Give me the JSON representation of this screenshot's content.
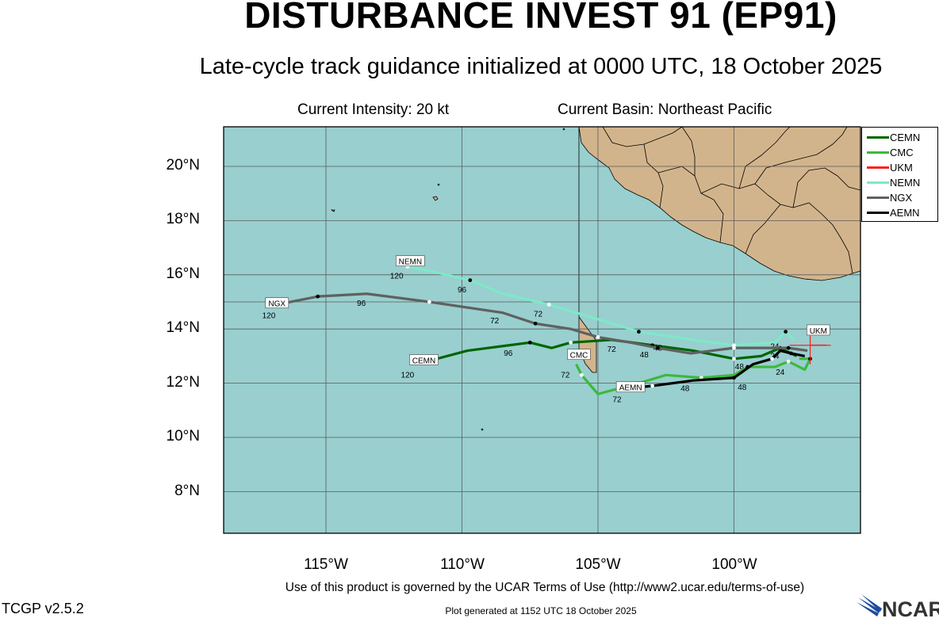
{
  "header": {
    "title": "DISTURBANCE INVEST 91 (EP91)",
    "subtitle": "Late-cycle track guidance initialized at 0000 UTC, 18 October 2025",
    "intensity": "Current Intensity: 20 kt",
    "basin": "Current Basin: Northeast Pacific"
  },
  "axes": {
    "lat_labels": [
      "20°N",
      "18°N",
      "16°N",
      "14°N",
      "12°N",
      "10°N",
      "8°N"
    ],
    "lon_labels": [
      "115°W",
      "110°W",
      "105°W",
      "100°W"
    ]
  },
  "colors": {
    "ocean": "#99cfcf",
    "land": "#d2b48c",
    "CEMN": "#006400",
    "CMC": "#3cb93c",
    "UKM": "#ff2020",
    "NEMN": "#7fe8c8",
    "NGX": "#606060",
    "AEMN": "#000000"
  },
  "legend": [
    "CEMN",
    "CMC",
    "UKM",
    "NEMN",
    "NGX",
    "AEMN"
  ],
  "map_data": {
    "type": "track",
    "current_position": {
      "lat": 13.4,
      "lon": -97.2
    },
    "tracks": [
      {
        "name": "CEMN",
        "points": [
          [
            -97.7,
            13.0
          ],
          [
            -98.3,
            13.3
          ],
          [
            -99.0,
            13.0
          ],
          [
            -100.0,
            12.9
          ],
          [
            -101.5,
            13.2
          ],
          [
            -103.0,
            13.4
          ],
          [
            -104.5,
            13.6
          ],
          [
            -106.0,
            13.5
          ],
          [
            -106.7,
            13.3
          ],
          [
            -107.5,
            13.5
          ],
          [
            -109.8,
            13.2
          ],
          [
            -111.3,
            12.8
          ]
        ],
        "labels": [
          {
            "text": "48",
            "lon": -99.8,
            "lat": 12.8
          },
          {
            "text": "72",
            "lon": -104.5,
            "lat": 13.45
          },
          {
            "text": "96",
            "lon": -108.3,
            "lat": 13.3
          },
          {
            "text": "120",
            "lon": -112.0,
            "lat": 12.5
          }
        ],
        "tag": {
          "text": "CEMN",
          "lon": -111.4,
          "lat": 12.85
        }
      },
      {
        "name": "CMC",
        "points": [
          [
            -97.6,
            12.9
          ],
          [
            -97.2,
            12.9
          ],
          [
            -97.4,
            12.5
          ],
          [
            -98.0,
            12.8
          ],
          [
            -98.5,
            12.6
          ],
          [
            -99.5,
            12.6
          ],
          [
            -100.0,
            12.3
          ],
          [
            -101.2,
            12.2
          ],
          [
            -102.5,
            12.3
          ],
          [
            -103.5,
            12.0
          ],
          [
            -105.0,
            11.6
          ],
          [
            -105.6,
            12.3
          ],
          [
            -105.8,
            12.7
          ]
        ],
        "labels": [
          {
            "text": "24",
            "lon": -98.3,
            "lat": 12.6
          },
          {
            "text": "48",
            "lon": -101.8,
            "lat": 12.0
          },
          {
            "text": "72",
            "lon": -106.2,
            "lat": 12.5
          }
        ],
        "tag": {
          "text": "CMC",
          "lon": -105.7,
          "lat": 13.05
        }
      },
      {
        "name": "UKM",
        "points": [
          [
            -96.6,
            13.4
          ],
          [
            -97.2,
            13.4
          ]
        ],
        "labels": [],
        "tag": {
          "text": "UKM",
          "lon": -96.9,
          "lat": 13.95
        }
      },
      {
        "name": "NEMN",
        "points": [
          [
            -97.8,
            13.6
          ],
          [
            -98.1,
            13.9
          ],
          [
            -98.5,
            13.5
          ],
          [
            -100.0,
            13.4
          ],
          [
            -101.5,
            13.6
          ],
          [
            -103.5,
            13.9
          ],
          [
            -104.8,
            14.3
          ],
          [
            -106.8,
            14.9
          ],
          [
            -108.5,
            15.3
          ],
          [
            -109.7,
            15.8
          ],
          [
            -111.0,
            16.1
          ],
          [
            -112.0,
            16.3
          ]
        ],
        "labels": [
          {
            "text": "24",
            "lon": -98.5,
            "lat": 13.55
          },
          {
            "text": "48",
            "lon": -102.8,
            "lat": 13.5
          },
          {
            "text": "72",
            "lon": -107.2,
            "lat": 14.75
          },
          {
            "text": "96",
            "lon": -110.0,
            "lat": 15.65
          },
          {
            "text": "120",
            "lon": -112.4,
            "lat": 16.15
          }
        ],
        "tag": {
          "text": "NEMN",
          "lon": -111.9,
          "lat": 16.5
        }
      },
      {
        "name": "NGX",
        "points": [
          [
            -97.3,
            13.2
          ],
          [
            -98.0,
            13.3
          ],
          [
            -99.0,
            13.3
          ],
          [
            -100.0,
            13.3
          ],
          [
            -101.6,
            13.1
          ],
          [
            -102.8,
            13.3
          ],
          [
            -103.8,
            13.5
          ],
          [
            -105.0,
            13.7
          ],
          [
            -106.0,
            14.0
          ],
          [
            -107.3,
            14.2
          ],
          [
            -108.5,
            14.6
          ],
          [
            -111.2,
            15.0
          ],
          [
            -113.5,
            15.3
          ],
          [
            -115.3,
            15.2
          ],
          [
            -116.8,
            14.9
          ]
        ],
        "labels": [
          {
            "text": "24",
            "lon": -98.5,
            "lat": 13.2
          },
          {
            "text": "48",
            "lon": -103.3,
            "lat": 13.25
          },
          {
            "text": "72",
            "lon": -108.8,
            "lat": 14.5
          },
          {
            "text": "96",
            "lon": -113.7,
            "lat": 15.15
          },
          {
            "text": "120",
            "lon": -117.1,
            "lat": 14.7
          }
        ],
        "tag": {
          "text": "NGX",
          "lon": -116.8,
          "lat": 14.95
        }
      },
      {
        "name": "AEMN",
        "points": [
          [
            -97.4,
            13.0
          ],
          [
            -97.9,
            13.1
          ],
          [
            -98.3,
            13.2
          ],
          [
            -98.6,
            12.9
          ],
          [
            -99.3,
            12.7
          ],
          [
            -100.0,
            12.2
          ],
          [
            -101.5,
            12.1
          ],
          [
            -103.0,
            11.9
          ],
          [
            -104.0,
            11.8
          ]
        ],
        "labels": [
          {
            "text": "48",
            "lon": -99.7,
            "lat": 12.05
          },
          {
            "text": "72",
            "lon": -104.3,
            "lat": 11.6
          }
        ],
        "tag": {
          "text": "AEMN",
          "lon": -103.8,
          "lat": 11.85
        }
      }
    ]
  },
  "footer": {
    "terms": "Use of this product is governed by the UCAR Terms of Use (http://www2.ucar.edu/terms-of-use)",
    "version": "TCGP v2.5.2",
    "generated": "Plot generated at 1152 UTC   18 October 2025",
    "logo_text": "NCAR"
  }
}
